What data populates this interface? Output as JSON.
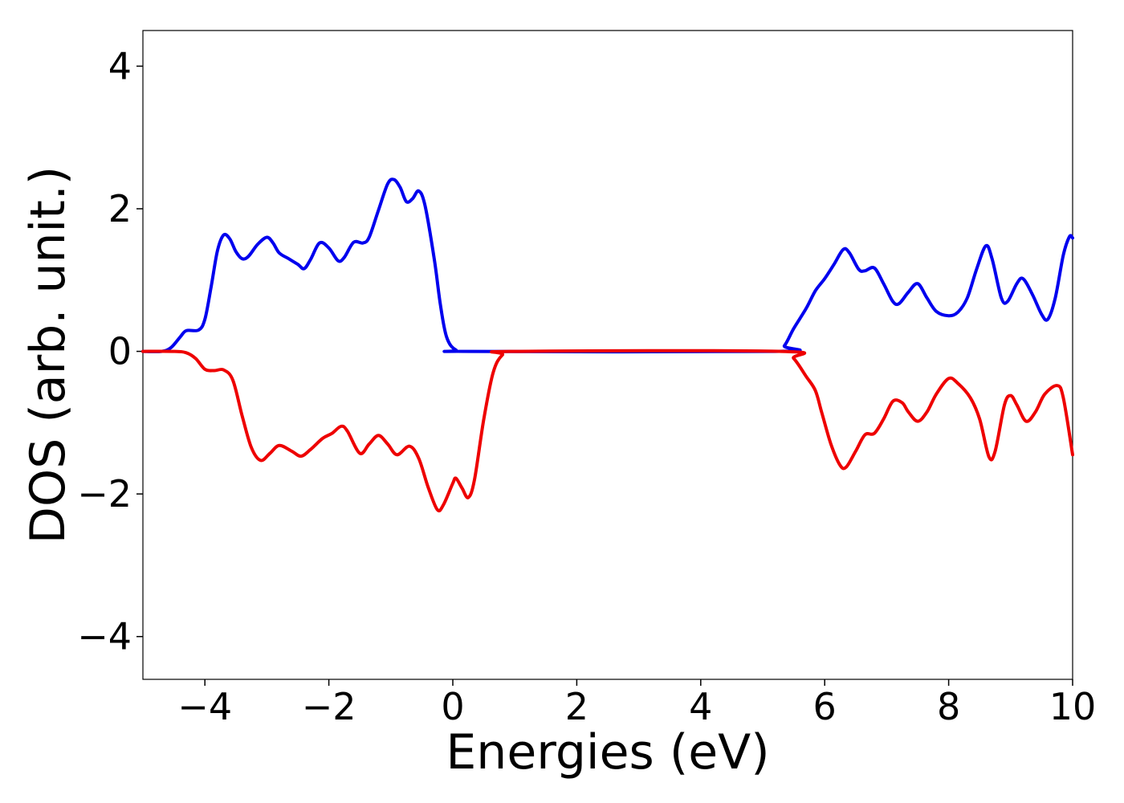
{
  "chart_data": {
    "type": "line",
    "title": "",
    "xlabel": "Energies (eV)",
    "ylabel": "DOS (arb. unit.)",
    "xlim": [
      -5,
      10
    ],
    "ylim": [
      -4.6,
      4.5
    ],
    "grid": false,
    "legend": "none",
    "x_ticks": [
      {
        "value": -4,
        "label": "−4"
      },
      {
        "value": -2,
        "label": "−2"
      },
      {
        "value": 0,
        "label": "0"
      },
      {
        "value": 2,
        "label": "2"
      },
      {
        "value": 4,
        "label": "4"
      },
      {
        "value": 6,
        "label": "6"
      },
      {
        "value": 8,
        "label": "8"
      },
      {
        "value": 10,
        "label": "10"
      }
    ],
    "y_ticks": [
      {
        "value": -4,
        "label": "−4"
      },
      {
        "value": -2,
        "label": "−2"
      },
      {
        "value": 0,
        "label": "0"
      },
      {
        "value": 2,
        "label": "2"
      },
      {
        "value": 4,
        "label": "4"
      }
    ],
    "series": [
      {
        "color": "#0000ee",
        "points": [
          [
            -5.0,
            0.0
          ],
          [
            -4.7,
            0.0
          ],
          [
            -4.55,
            0.05
          ],
          [
            -4.4,
            0.2
          ],
          [
            -4.3,
            0.29
          ],
          [
            -4.1,
            0.3
          ],
          [
            -4.0,
            0.45
          ],
          [
            -3.9,
            0.9
          ],
          [
            -3.8,
            1.4
          ],
          [
            -3.7,
            1.63
          ],
          [
            -3.6,
            1.58
          ],
          [
            -3.5,
            1.4
          ],
          [
            -3.4,
            1.3
          ],
          [
            -3.3,
            1.33
          ],
          [
            -3.15,
            1.5
          ],
          [
            -3.0,
            1.6
          ],
          [
            -2.9,
            1.52
          ],
          [
            -2.8,
            1.38
          ],
          [
            -2.65,
            1.3
          ],
          [
            -2.5,
            1.22
          ],
          [
            -2.4,
            1.16
          ],
          [
            -2.3,
            1.28
          ],
          [
            -2.15,
            1.52
          ],
          [
            -2.0,
            1.45
          ],
          [
            -1.85,
            1.27
          ],
          [
            -1.75,
            1.32
          ],
          [
            -1.6,
            1.53
          ],
          [
            -1.45,
            1.52
          ],
          [
            -1.35,
            1.6
          ],
          [
            -1.2,
            1.98
          ],
          [
            -1.05,
            2.35
          ],
          [
            -0.95,
            2.41
          ],
          [
            -0.85,
            2.3
          ],
          [
            -0.75,
            2.1
          ],
          [
            -0.65,
            2.14
          ],
          [
            -0.55,
            2.25
          ],
          [
            -0.45,
            2.05
          ],
          [
            -0.3,
            1.3
          ],
          [
            -0.2,
            0.65
          ],
          [
            -0.1,
            0.2
          ],
          [
            0.05,
            0.02
          ],
          [
            0.3,
            0.0
          ],
          [
            5.2,
            0.0
          ],
          [
            5.35,
            0.08
          ],
          [
            5.5,
            0.32
          ],
          [
            5.7,
            0.6
          ],
          [
            5.85,
            0.85
          ],
          [
            6.0,
            1.02
          ],
          [
            6.15,
            1.22
          ],
          [
            6.3,
            1.43
          ],
          [
            6.4,
            1.38
          ],
          [
            6.55,
            1.15
          ],
          [
            6.65,
            1.13
          ],
          [
            6.8,
            1.17
          ],
          [
            6.95,
            0.95
          ],
          [
            7.1,
            0.7
          ],
          [
            7.2,
            0.67
          ],
          [
            7.35,
            0.83
          ],
          [
            7.5,
            0.95
          ],
          [
            7.65,
            0.75
          ],
          [
            7.8,
            0.56
          ],
          [
            8.0,
            0.5
          ],
          [
            8.15,
            0.55
          ],
          [
            8.3,
            0.75
          ],
          [
            8.45,
            1.15
          ],
          [
            8.6,
            1.48
          ],
          [
            8.7,
            1.3
          ],
          [
            8.85,
            0.75
          ],
          [
            8.95,
            0.7
          ],
          [
            9.1,
            0.95
          ],
          [
            9.2,
            1.02
          ],
          [
            9.35,
            0.8
          ],
          [
            9.5,
            0.52
          ],
          [
            9.6,
            0.45
          ],
          [
            9.72,
            0.75
          ],
          [
            9.85,
            1.35
          ],
          [
            9.95,
            1.61
          ],
          [
            10.0,
            1.59
          ]
        ]
      },
      {
        "color": "#ee0000",
        "points": [
          [
            -5.0,
            0.0
          ],
          [
            -4.5,
            0.0
          ],
          [
            -4.3,
            -0.02
          ],
          [
            -4.15,
            -0.1
          ],
          [
            -4.0,
            -0.25
          ],
          [
            -3.85,
            -0.27
          ],
          [
            -3.7,
            -0.26
          ],
          [
            -3.55,
            -0.4
          ],
          [
            -3.4,
            -0.9
          ],
          [
            -3.25,
            -1.35
          ],
          [
            -3.1,
            -1.53
          ],
          [
            -2.95,
            -1.43
          ],
          [
            -2.8,
            -1.32
          ],
          [
            -2.6,
            -1.4
          ],
          [
            -2.45,
            -1.47
          ],
          [
            -2.3,
            -1.38
          ],
          [
            -2.1,
            -1.22
          ],
          [
            -1.95,
            -1.15
          ],
          [
            -1.8,
            -1.05
          ],
          [
            -1.7,
            -1.12
          ],
          [
            -1.5,
            -1.43
          ],
          [
            -1.35,
            -1.3
          ],
          [
            -1.2,
            -1.18
          ],
          [
            -1.05,
            -1.3
          ],
          [
            -0.9,
            -1.45
          ],
          [
            -0.7,
            -1.33
          ],
          [
            -0.55,
            -1.5
          ],
          [
            -0.4,
            -1.9
          ],
          [
            -0.25,
            -2.22
          ],
          [
            -0.15,
            -2.15
          ],
          [
            0.0,
            -1.85
          ],
          [
            0.05,
            -1.78
          ],
          [
            0.15,
            -1.92
          ],
          [
            0.25,
            -2.05
          ],
          [
            0.35,
            -1.8
          ],
          [
            0.5,
            -0.95
          ],
          [
            0.65,
            -0.3
          ],
          [
            0.8,
            -0.05
          ],
          [
            1.0,
            0.0
          ],
          [
            5.3,
            0.0
          ],
          [
            5.5,
            -0.1
          ],
          [
            5.7,
            -0.35
          ],
          [
            5.85,
            -0.55
          ],
          [
            5.95,
            -0.85
          ],
          [
            6.1,
            -1.3
          ],
          [
            6.25,
            -1.6
          ],
          [
            6.35,
            -1.62
          ],
          [
            6.5,
            -1.4
          ],
          [
            6.65,
            -1.17
          ],
          [
            6.8,
            -1.15
          ],
          [
            6.95,
            -0.95
          ],
          [
            7.1,
            -0.7
          ],
          [
            7.25,
            -0.72
          ],
          [
            7.35,
            -0.85
          ],
          [
            7.5,
            -0.98
          ],
          [
            7.65,
            -0.85
          ],
          [
            7.8,
            -0.6
          ],
          [
            8.0,
            -0.38
          ],
          [
            8.15,
            -0.45
          ],
          [
            8.35,
            -0.65
          ],
          [
            8.5,
            -0.95
          ],
          [
            8.65,
            -1.48
          ],
          [
            8.75,
            -1.4
          ],
          [
            8.9,
            -0.75
          ],
          [
            9.0,
            -0.62
          ],
          [
            9.1,
            -0.75
          ],
          [
            9.25,
            -0.98
          ],
          [
            9.4,
            -0.85
          ],
          [
            9.55,
            -0.6
          ],
          [
            9.75,
            -0.48
          ],
          [
            9.85,
            -0.65
          ],
          [
            10.0,
            -1.45
          ]
        ]
      }
    ]
  }
}
